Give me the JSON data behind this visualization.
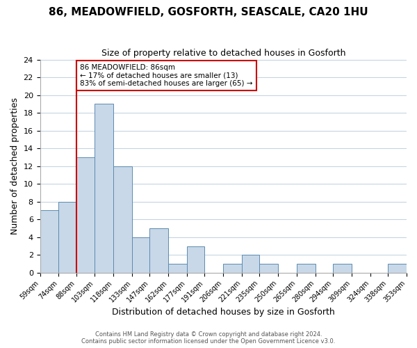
{
  "title": "86, MEADOWFIELD, GOSFORTH, SEASCALE, CA20 1HU",
  "subtitle": "Size of property relative to detached houses in Gosforth",
  "xlabel": "Distribution of detached houses by size in Gosforth",
  "ylabel": "Number of detached properties",
  "bar_color": "#c8d8e8",
  "bar_edge_color": "#5a8ab0",
  "reference_line_x": 88,
  "reference_line_color": "#cc0000",
  "annotation_title": "86 MEADOWFIELD: 86sqm",
  "annotation_line1": "← 17% of detached houses are smaller (13)",
  "annotation_line2": "83% of semi-detached houses are larger (65) →",
  "annotation_box_color": "#ffffff",
  "annotation_box_edge": "#cc0000",
  "bins": [
    59,
    74,
    88,
    103,
    118,
    133,
    147,
    162,
    177,
    191,
    206,
    221,
    235,
    250,
    265,
    280,
    294,
    309,
    324,
    338,
    353
  ],
  "bin_labels": [
    "59sqm",
    "74sqm",
    "88sqm",
    "103sqm",
    "118sqm",
    "133sqm",
    "147sqm",
    "162sqm",
    "177sqm",
    "191sqm",
    "206sqm",
    "221sqm",
    "235sqm",
    "250sqm",
    "265sqm",
    "280sqm",
    "294sqm",
    "309sqm",
    "324sqm",
    "338sqm",
    "353sqm"
  ],
  "counts": [
    7,
    8,
    13,
    19,
    12,
    4,
    5,
    1,
    3,
    0,
    1,
    2,
    1,
    0,
    1,
    0,
    1,
    0,
    0,
    1
  ],
  "ylim": [
    0,
    24
  ],
  "yticks": [
    0,
    2,
    4,
    6,
    8,
    10,
    12,
    14,
    16,
    18,
    20,
    22,
    24
  ],
  "footer1": "Contains HM Land Registry data © Crown copyright and database right 2024.",
  "footer2": "Contains public sector information licensed under the Open Government Licence v3.0.",
  "background_color": "#ffffff",
  "grid_color": "#c0d0e0"
}
